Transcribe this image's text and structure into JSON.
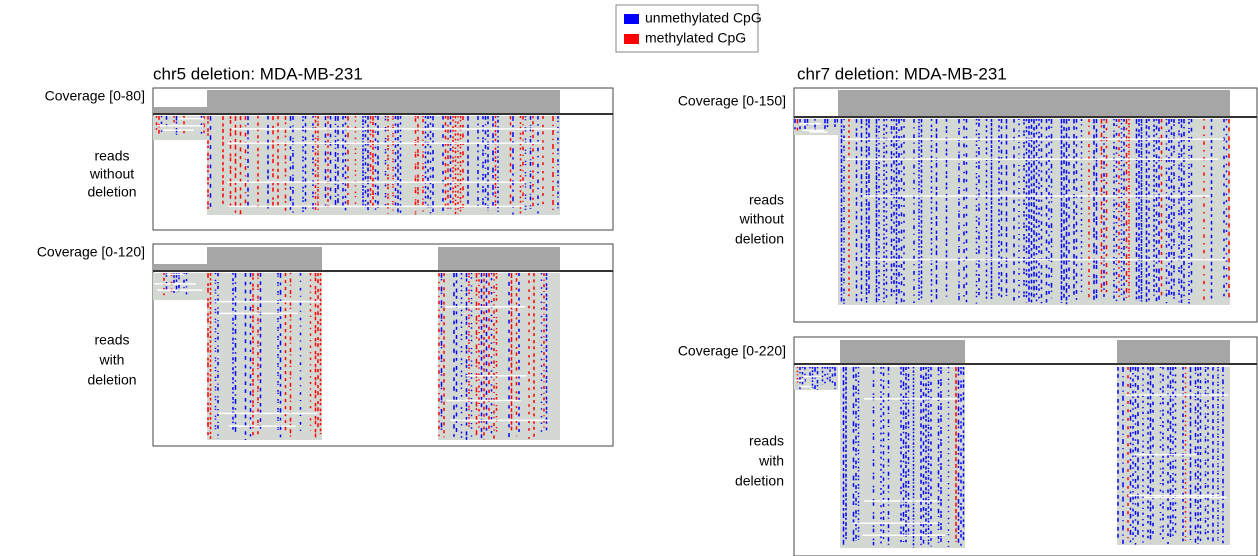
{
  "legend": {
    "items": [
      {
        "label": "unmethylated CpG",
        "color": "#0000ff"
      },
      {
        "label": "methylated CpG",
        "color": "#ff0000"
      }
    ]
  },
  "panels": [
    {
      "title": "chr5 deletion: MDA-MB-231",
      "tracks": [
        {
          "coverage_label": "Coverage [0-80]",
          "reads_label": [
            "reads",
            "without",
            "deletion"
          ]
        },
        {
          "coverage_label": "Coverage [0-120]",
          "reads_label": [
            "reads",
            "with",
            "deletion"
          ]
        }
      ]
    },
    {
      "title": "chr7 deletion: MDA-MB-231",
      "tracks": [
        {
          "coverage_label": "Coverage [0-150]",
          "reads_label": [
            "reads",
            "without",
            "deletion"
          ]
        },
        {
          "coverage_label": "Coverage [0-220]",
          "reads_label": [
            "reads",
            "with",
            "deletion"
          ]
        }
      ]
    }
  ]
}
